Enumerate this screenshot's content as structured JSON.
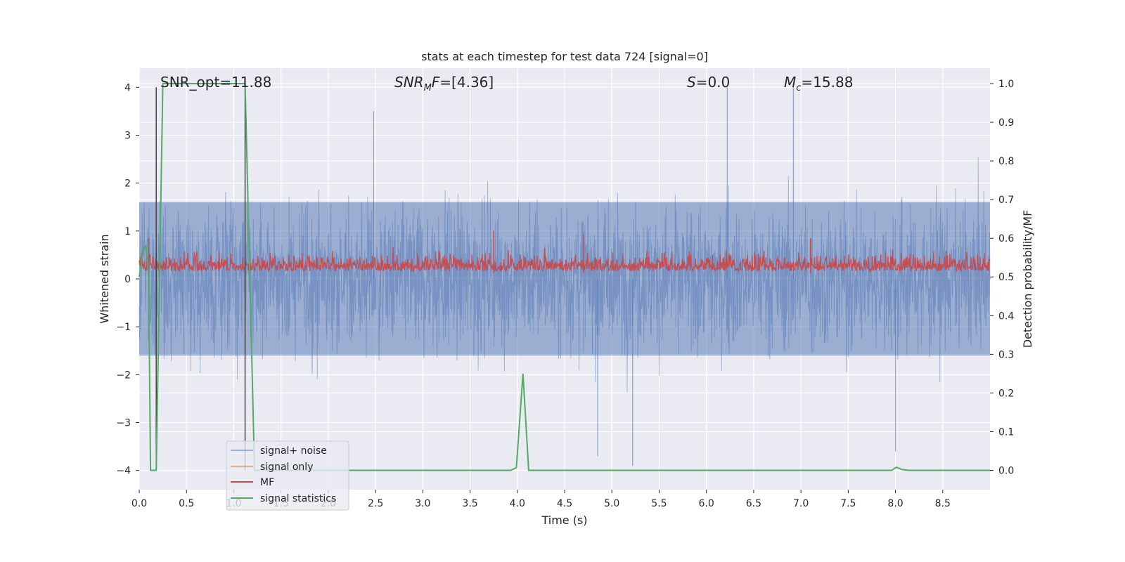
{
  "chart_data": {
    "type": "line",
    "title": "stats at each timestep for test data 724 [signal=0]",
    "xlabel": "Time (s)",
    "ylabel_left": "Whitened strain",
    "ylabel_right": "Detection probability/MF",
    "xlim": [
      0.0,
      9.0
    ],
    "ylim_left": [
      -4.4,
      4.4
    ],
    "ylim_right": [
      -0.05,
      1.04
    ],
    "x_ticks": [
      "0.0",
      "0.5",
      "1.0",
      "1.5",
      "2.0",
      "2.5",
      "3.0",
      "3.5",
      "4.0",
      "4.5",
      "5.0",
      "5.5",
      "6.0",
      "6.5",
      "7.0",
      "7.5",
      "8.0",
      "8.5"
    ],
    "y_ticks_left": [
      "4",
      "3",
      "2",
      "1",
      "0",
      "−1",
      "−2",
      "−3",
      "−4"
    ],
    "y_ticks_right": [
      "1.0",
      "0.9",
      "0.8",
      "0.7",
      "0.6",
      "0.5",
      "0.4",
      "0.3",
      "0.2",
      "0.1",
      "0.0"
    ],
    "annotations": {
      "snr_opt": "SNR_opt=11.88",
      "snr_mf": "=[4.36]",
      "s_stat": "=0.0",
      "mc": "=15.88"
    },
    "legend": {
      "position": "lower left",
      "entries": [
        {
          "label": "signal+ noise",
          "color": "#4c72b0"
        },
        {
          "label": "signal only",
          "color": "#dd8452"
        },
        {
          "label": "MF",
          "color": "#c44e52"
        },
        {
          "label": "signal statistics",
          "color": "#55a868"
        }
      ]
    },
    "markers": {
      "vertical_lines_x": [
        0.18,
        1.12
      ]
    },
    "series": [
      {
        "name": "signal+ noise",
        "axis": "left",
        "note": "whitened noisy strain, approx. band +/-1.6 with spikes to about +/-4",
        "peaks": [
          {
            "x": 2.48,
            "y": 3.5
          },
          {
            "x": 6.22,
            "y": 4.0
          },
          {
            "x": 6.92,
            "y": 4.0
          },
          {
            "x": 4.85,
            "y": -3.7
          },
          {
            "x": 5.22,
            "y": -3.9
          },
          {
            "x": 8.0,
            "y": -3.6
          }
        ]
      },
      {
        "name": "MF",
        "axis": "right",
        "note": "matched-filter output, roughly 0.5 to 0.62",
        "peaks": [
          {
            "x": 0.1,
            "y": 0.6
          },
          {
            "x": 3.75,
            "y": 0.62
          },
          {
            "x": 4.7,
            "y": 0.61
          },
          {
            "x": 7.1,
            "y": 0.6
          }
        ]
      },
      {
        "name": "signal statistics",
        "axis": "right",
        "x": [
          0.0,
          0.04,
          0.07,
          0.1,
          0.12,
          0.18,
          0.25,
          1.12,
          1.17,
          1.22,
          1.3,
          3.93,
          3.99,
          4.06,
          4.12,
          7.96,
          8.01,
          8.07,
          8.14,
          9.0
        ],
        "values": [
          0.5,
          0.57,
          0.58,
          0.5,
          0.0,
          0.0,
          1.0,
          1.0,
          0.5,
          0.0,
          0.0,
          0.0,
          0.007,
          0.25,
          0.0,
          0.0,
          0.008,
          0.002,
          0.0,
          0.0
        ]
      }
    ]
  }
}
